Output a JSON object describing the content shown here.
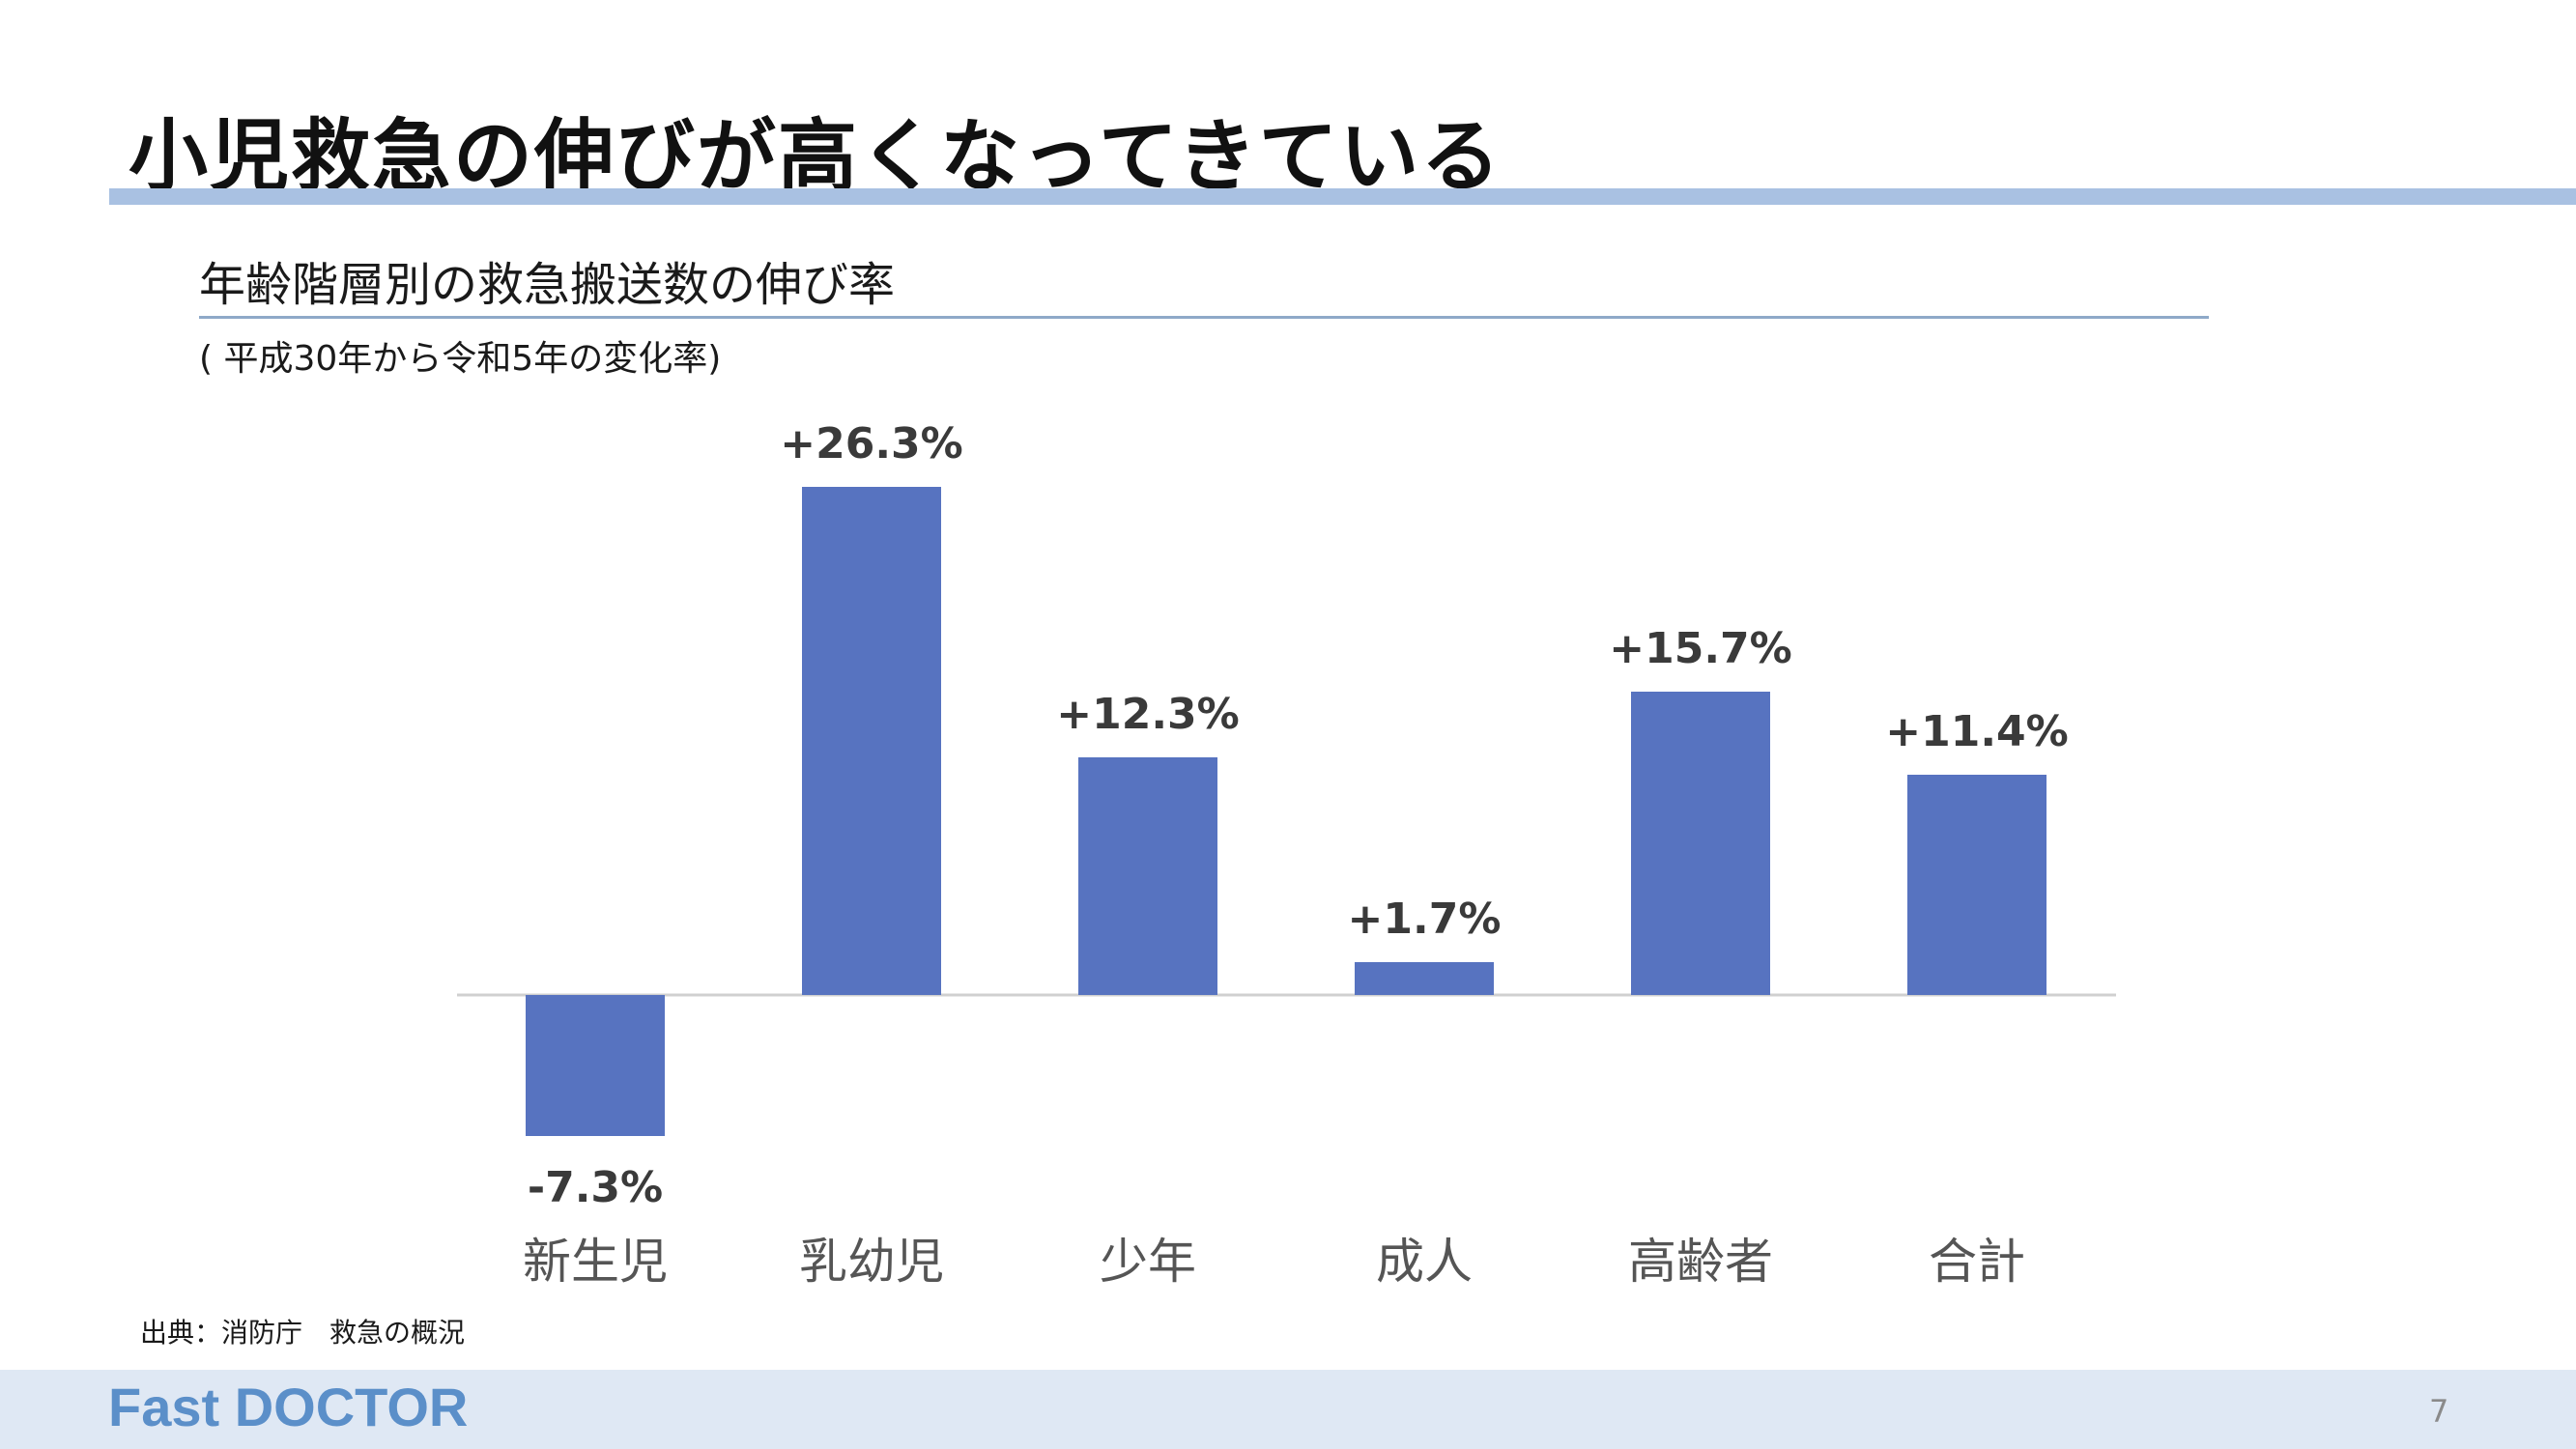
{
  "slide": {
    "title": "小児救急の伸びが高くなってきている",
    "source": "出典：消防庁　救急の概況",
    "logo_text": "Fast DOCTOR",
    "page_number": "7"
  },
  "chart_data": {
    "type": "bar",
    "title": "年齢階層別の救急搬送数の伸び率",
    "subtitle": "( 平成30年から令和5年の変化率)",
    "xlabel": "",
    "ylabel": "",
    "categories": [
      "新生児",
      "乳幼児",
      "少年",
      "成人",
      "高齢者",
      "合計"
    ],
    "values": [
      -7.3,
      26.3,
      12.3,
      1.7,
      15.7,
      11.4
    ],
    "data_labels": [
      "-7.3%",
      "+26.3%",
      "+12.3%",
      "+1.7%",
      "+15.7%",
      "+11.4%"
    ],
    "unit": "%",
    "bar_color": "#5773c0",
    "grid": false,
    "legend": "none"
  }
}
